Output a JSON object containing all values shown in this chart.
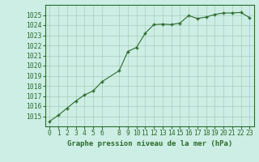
{
  "x": [
    0,
    1,
    2,
    3,
    4,
    5,
    6,
    8,
    9,
    10,
    11,
    12,
    13,
    14,
    15,
    16,
    17,
    18,
    19,
    20,
    21,
    22,
    23
  ],
  "y": [
    1014.5,
    1015.1,
    1015.8,
    1016.5,
    1017.1,
    1017.5,
    1018.4,
    1019.5,
    1021.4,
    1021.8,
    1023.2,
    1024.05,
    1024.1,
    1024.05,
    1024.2,
    1024.95,
    1024.65,
    1024.8,
    1025.05,
    1025.2,
    1025.2,
    1025.25,
    1024.75
  ],
  "xlim": [
    -0.5,
    23.5
  ],
  "ylim": [
    1014.0,
    1026.0
  ],
  "yticks": [
    1015,
    1016,
    1017,
    1018,
    1019,
    1020,
    1021,
    1022,
    1023,
    1024,
    1025
  ],
  "xticks": [
    0,
    1,
    2,
    3,
    4,
    5,
    6,
    8,
    9,
    10,
    11,
    12,
    13,
    14,
    15,
    16,
    17,
    18,
    19,
    20,
    21,
    22,
    23
  ],
  "line_color": "#2d6a2d",
  "marker": "+",
  "markersize": 3.5,
  "linewidth": 0.8,
  "bg_color": "#cceee4",
  "grid_color": "#aaccbb",
  "xlabel": "Graphe pression niveau de la mer (hPa)",
  "xlabel_fontsize": 6.5,
  "tick_fontsize": 5.8
}
